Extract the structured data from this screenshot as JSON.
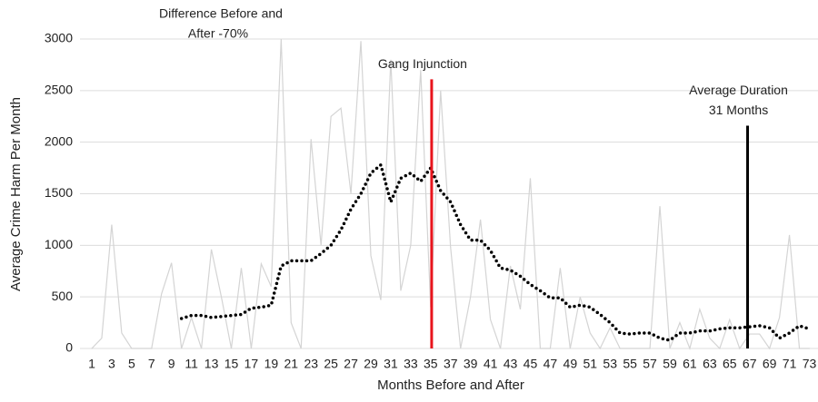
{
  "chart_data": {
    "type": "line",
    "y_label": "Average Crime Harm Per Month",
    "x_label": "Months Before and After",
    "x": [
      1,
      2,
      3,
      4,
      5,
      6,
      7,
      8,
      9,
      10,
      11,
      12,
      13,
      14,
      15,
      16,
      17,
      18,
      19,
      20,
      21,
      22,
      23,
      24,
      25,
      26,
      27,
      28,
      29,
      30,
      31,
      32,
      33,
      34,
      35,
      36,
      37,
      38,
      39,
      40,
      41,
      42,
      43,
      44,
      45,
      46,
      47,
      48,
      49,
      50,
      51,
      52,
      53,
      54,
      55,
      56,
      57,
      58,
      59,
      60,
      61,
      62,
      63,
      64,
      65,
      66,
      67,
      68,
      69,
      70,
      71,
      72,
      73
    ],
    "xlim": [
      0.5,
      73.5
    ],
    "xticks": [
      1,
      3,
      5,
      7,
      9,
      11,
      13,
      15,
      17,
      19,
      21,
      23,
      25,
      27,
      29,
      31,
      33,
      35,
      37,
      39,
      41,
      43,
      45,
      47,
      49,
      51,
      53,
      55,
      57,
      59,
      61,
      63,
      65,
      67,
      69,
      71,
      73
    ],
    "ylim": [
      0,
      3000
    ],
    "yticks": [
      0,
      500,
      1000,
      1500,
      2000,
      2500,
      3000
    ],
    "grid": true,
    "series": [
      {
        "color": "#d4d4d4",
        "style": "solid",
        "values": [
          0,
          100,
          1200,
          150,
          0,
          0,
          0,
          530,
          830,
          0,
          300,
          0,
          960,
          500,
          0,
          780,
          0,
          820,
          600,
          3000,
          250,
          0,
          2030,
          1000,
          2250,
          2330,
          1500,
          2980,
          900,
          470,
          2800,
          560,
          1000,
          2700,
          400,
          2500,
          980,
          0,
          500,
          1250,
          280,
          0,
          800,
          380,
          1650,
          0,
          0,
          780,
          0,
          500,
          150,
          0,
          200,
          0,
          0,
          0,
          0,
          1380,
          0,
          250,
          0,
          380,
          100,
          0,
          280,
          0,
          140,
          140,
          0,
          300,
          1100,
          0,
          0
        ]
      },
      {
        "color": "#000000",
        "style": "dotted",
        "values": [
          null,
          null,
          null,
          null,
          null,
          null,
          null,
          null,
          null,
          290,
          320,
          320,
          300,
          310,
          320,
          330,
          390,
          400,
          420,
          800,
          850,
          850,
          850,
          920,
          1000,
          1150,
          1350,
          1500,
          1700,
          1780,
          1420,
          1650,
          1700,
          1620,
          1750,
          1530,
          1420,
          1200,
          1050,
          1050,
          950,
          780,
          760,
          700,
          620,
          560,
          490,
          490,
          400,
          420,
          400,
          330,
          250,
          150,
          140,
          150,
          150,
          100,
          80,
          150,
          150,
          170,
          170,
          190,
          200,
          200,
          210,
          220,
          200,
          100,
          150,
          220,
          190
        ]
      }
    ],
    "markers": [
      {
        "label_lines": [
          "Gang Injunction"
        ],
        "x": 35.1,
        "top": 2610,
        "color": "#e8141c"
      },
      {
        "label_lines": [
          "Average Duration",
          "31 Months"
        ],
        "x": 66.8,
        "top": 2160,
        "color": "#000000"
      }
    ],
    "annotation_lines": [
      "Difference Before and",
      "After -70%"
    ]
  }
}
